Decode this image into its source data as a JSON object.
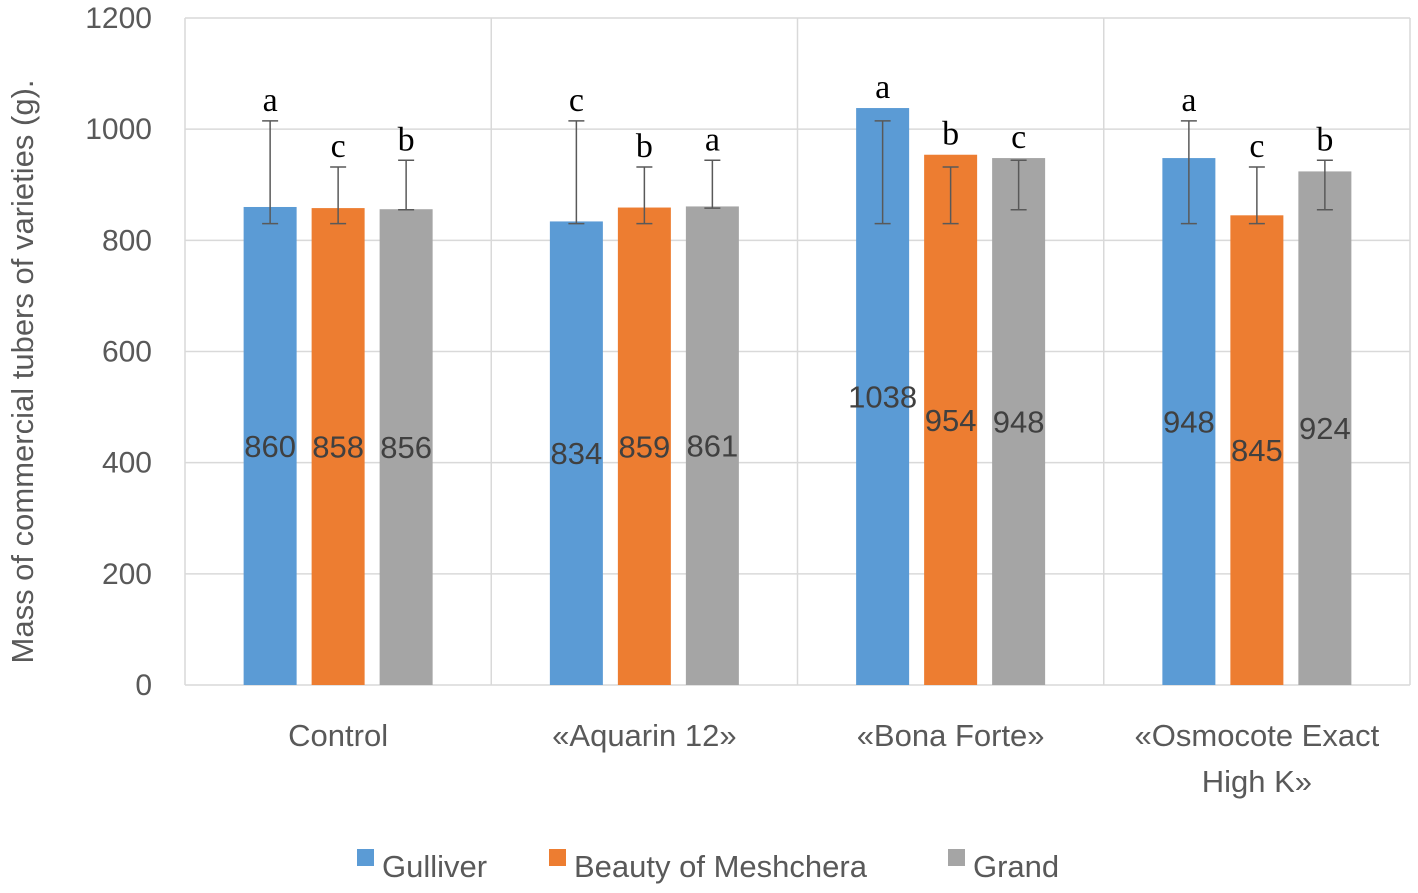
{
  "chart_data": {
    "type": "bar",
    "ylabel": "Mass of commercial tubers of varieties (g).",
    "xlabel": "",
    "ylim": [
      0,
      1200
    ],
    "yticks": [
      0,
      200,
      400,
      600,
      800,
      1000,
      1200
    ],
    "grid": true,
    "legend_position": "bottom",
    "categories": [
      [
        "Control"
      ],
      [
        "«Aquarin 12»"
      ],
      [
        "«Bona Forte»"
      ],
      [
        "«Osmocote Exact",
        "High K»"
      ]
    ],
    "series": [
      {
        "name": "Gulliver",
        "color": "#5b9bd5",
        "values": [
          860,
          834,
          1038,
          948
        ],
        "error_low": [
          830,
          830,
          830,
          830
        ],
        "error_high": [
          1015,
          1015,
          1015,
          1015
        ],
        "letters": [
          "a",
          "c",
          "a",
          "a"
        ]
      },
      {
        "name": "Beauty of Meshchera",
        "color": "#ed7d31",
        "values": [
          858,
          859,
          954,
          845
        ],
        "error_low": [
          830,
          830,
          830,
          830
        ],
        "error_high": [
          932,
          932,
          932,
          932
        ],
        "letters": [
          "c",
          "b",
          "b",
          "c"
        ]
      },
      {
        "name": "Grand",
        "color": "#a5a5a5",
        "values": [
          856,
          861,
          948,
          924
        ],
        "error_low": [
          855,
          858,
          855,
          855
        ],
        "error_high": [
          944,
          944,
          944,
          944
        ],
        "letters": [
          "b",
          "a",
          "c",
          "b"
        ]
      }
    ]
  }
}
